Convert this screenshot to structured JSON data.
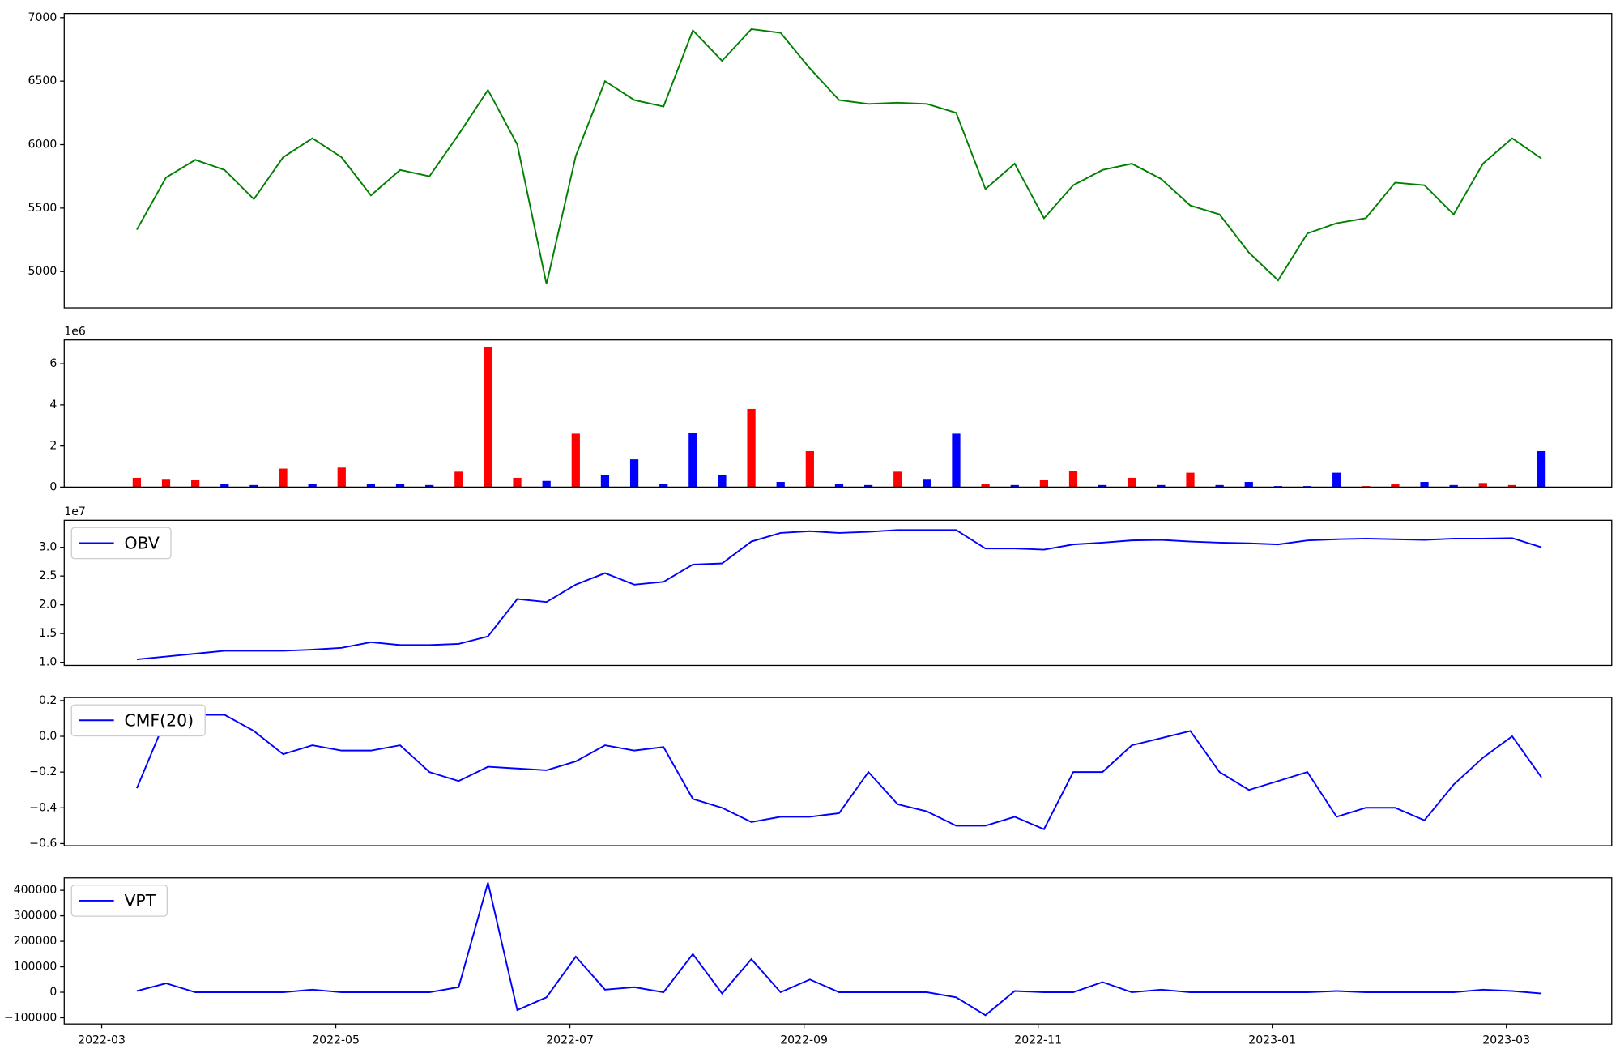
{
  "chart_data": [
    {
      "type": "line",
      "color": "#008000",
      "x": [
        0.3,
        0.55,
        0.8,
        1.05,
        1.3,
        1.55,
        1.8,
        2.05,
        2.3,
        2.55,
        2.8,
        3.05,
        3.3,
        3.55,
        3.8,
        4.05,
        4.3,
        4.55,
        4.8,
        5.05,
        5.3,
        5.55,
        5.8,
        6.05,
        6.3,
        6.55,
        6.8,
        7.05,
        7.3,
        7.55,
        7.8,
        8.05,
        8.3,
        8.55,
        8.8,
        9.05,
        9.3,
        9.55,
        9.8,
        10.05,
        10.3,
        10.55,
        10.8,
        11.05,
        11.3,
        11.55,
        11.8,
        12.05,
        12.3
      ],
      "values": [
        5330,
        5740,
        5880,
        5800,
        5570,
        5900,
        6050,
        5900,
        5600,
        5800,
        5750,
        6080,
        6430,
        6000,
        4900,
        5910,
        6500,
        6350,
        6300,
        6900,
        6660,
        6910,
        6880,
        6600,
        6350,
        6320,
        6330,
        6320,
        6250,
        5650,
        5850,
        5420,
        5680,
        5800,
        5850,
        5730,
        5520,
        5450,
        5150,
        4930,
        5300,
        5380,
        5420,
        5700,
        5680,
        5450,
        5850,
        6050,
        5890
      ],
      "xlim": [
        -0.32,
        12.9
      ],
      "ylim": [
        4714,
        7033
      ],
      "yticks": [
        5000,
        5500,
        6000,
        6500,
        7000
      ]
    },
    {
      "type": "bar",
      "y_offset_label": "1e6",
      "x": [
        0.3,
        0.55,
        0.8,
        1.05,
        1.3,
        1.55,
        1.8,
        2.05,
        2.3,
        2.55,
        2.8,
        3.05,
        3.3,
        3.55,
        3.8,
        4.05,
        4.3,
        4.55,
        4.8,
        5.05,
        5.3,
        5.55,
        5.8,
        6.05,
        6.3,
        6.55,
        6.8,
        7.05,
        7.3,
        7.55,
        7.8,
        8.05,
        8.3,
        8.55,
        8.8,
        9.05,
        9.3,
        9.55,
        9.8,
        10.05,
        10.3,
        10.55,
        10.8,
        11.05,
        11.3,
        11.55,
        11.8,
        12.05,
        12.3
      ],
      "values": [
        0.45,
        0.4,
        0.35,
        0.15,
        0.1,
        0.9,
        0.15,
        0.95,
        0.15,
        0.15,
        0.1,
        0.75,
        6.8,
        0.45,
        0.3,
        2.6,
        0.6,
        1.35,
        0.15,
        2.65,
        0.6,
        3.8,
        0.25,
        1.75,
        0.15,
        0.1,
        0.75,
        0.4,
        2.6,
        0.15,
        0.1,
        0.35,
        0.8,
        0.1,
        0.45,
        0.1,
        0.7,
        0.1,
        0.25,
        0.05,
        0.05,
        0.7,
        0.05,
        0.15,
        0.25,
        0.1,
        0.2,
        0.1,
        1.75
      ],
      "colors": [
        "#ff0000",
        "#ff0000",
        "#ff0000",
        "#0000ff",
        "#0000ff",
        "#ff0000",
        "#0000ff",
        "#ff0000",
        "#0000ff",
        "#0000ff",
        "#0000ff",
        "#ff0000",
        "#ff0000",
        "#ff0000",
        "#0000ff",
        "#ff0000",
        "#0000ff",
        "#0000ff",
        "#0000ff",
        "#0000ff",
        "#0000ff",
        "#ff0000",
        "#0000ff",
        "#ff0000",
        "#0000ff",
        "#0000ff",
        "#ff0000",
        "#0000ff",
        "#0000ff",
        "#ff0000",
        "#0000ff",
        "#ff0000",
        "#ff0000",
        "#0000ff",
        "#ff0000",
        "#0000ff",
        "#ff0000",
        "#0000ff",
        "#0000ff",
        "#0000ff",
        "#0000ff",
        "#0000ff",
        "#ff0000",
        "#ff0000",
        "#0000ff",
        "#0000ff",
        "#ff0000",
        "#ff0000",
        "#0000ff"
      ],
      "xlim": [
        -0.32,
        12.9
      ],
      "ylim": [
        0,
        7.16
      ],
      "yticks": [
        0,
        2,
        4,
        6
      ]
    },
    {
      "type": "line",
      "y_offset_label": "1e7",
      "x": [
        0.3,
        0.55,
        0.8,
        1.05,
        1.3,
        1.55,
        1.8,
        2.05,
        2.3,
        2.55,
        2.8,
        3.05,
        3.3,
        3.55,
        3.8,
        4.05,
        4.3,
        4.55,
        4.8,
        5.05,
        5.3,
        5.55,
        5.8,
        6.05,
        6.3,
        6.55,
        6.8,
        7.05,
        7.3,
        7.55,
        7.8,
        8.05,
        8.3,
        8.55,
        8.8,
        9.05,
        9.3,
        9.55,
        9.8,
        10.05,
        10.3,
        10.55,
        10.8,
        11.05,
        11.3,
        11.55,
        11.8,
        12.05,
        12.3
      ],
      "series": [
        {
          "name": "OBV",
          "color": "#0000ff",
          "values": [
            1.05,
            1.1,
            1.15,
            1.2,
            1.2,
            1.2,
            1.22,
            1.25,
            1.35,
            1.3,
            1.3,
            1.32,
            1.45,
            2.1,
            2.05,
            2.35,
            2.55,
            2.35,
            2.4,
            2.7,
            2.72,
            3.1,
            3.25,
            3.28,
            3.25,
            3.27,
            3.3,
            3.3,
            3.3,
            2.98,
            2.98,
            2.96,
            3.05,
            3.08,
            3.12,
            3.13,
            3.1,
            3.08,
            3.07,
            3.05,
            3.12,
            3.14,
            3.15,
            3.14,
            3.13,
            3.15,
            3.15,
            3.16,
            3.0
          ]
        }
      ],
      "xlim": [
        -0.32,
        12.9
      ],
      "ylim": [
        0.946,
        3.47
      ],
      "yticks": [
        {
          "value": 1,
          "label": "1.0"
        },
        {
          "value": 1.5,
          "label": "1.5"
        },
        {
          "value": 2,
          "label": "2.0"
        },
        {
          "value": 2.5,
          "label": "2.5"
        },
        {
          "value": 3,
          "label": "3.0"
        }
      ]
    },
    {
      "type": "line",
      "x": [
        0.3,
        0.55,
        0.8,
        1.05,
        1.3,
        1.55,
        1.8,
        2.05,
        2.3,
        2.55,
        2.8,
        3.05,
        3.3,
        3.55,
        3.8,
        4.05,
        4.3,
        4.55,
        4.8,
        5.05,
        5.3,
        5.55,
        5.8,
        6.05,
        6.3,
        6.55,
        6.8,
        7.05,
        7.3,
        7.55,
        7.8,
        8.05,
        8.3,
        8.55,
        8.8,
        9.05,
        9.3,
        9.55,
        9.8,
        10.05,
        10.3,
        10.55,
        10.8,
        11.05,
        11.3,
        11.55,
        11.8,
        12.05,
        12.3
      ],
      "series": [
        {
          "name": "CMF(20)",
          "color": "#0000ff",
          "values": [
            -0.29,
            0.1,
            0.12,
            0.12,
            0.03,
            -0.1,
            -0.05,
            -0.08,
            -0.08,
            -0.05,
            -0.2,
            -0.25,
            -0.17,
            -0.18,
            -0.19,
            -0.14,
            -0.05,
            -0.08,
            -0.06,
            -0.35,
            -0.4,
            -0.48,
            -0.45,
            -0.45,
            -0.43,
            -0.2,
            -0.38,
            -0.42,
            -0.5,
            -0.5,
            -0.45,
            -0.52,
            -0.2,
            -0.2,
            -0.05,
            -0.01,
            0.03,
            -0.2,
            -0.3,
            -0.25,
            -0.2,
            -0.45,
            -0.4,
            -0.4,
            -0.47,
            -0.27,
            -0.12,
            0.0,
            -0.23
          ]
        }
      ],
      "xlim": [
        -0.32,
        12.9
      ],
      "ylim": [
        -0.612,
        0.217
      ],
      "yticks": [
        {
          "value": -0.6,
          "label": "−0.6"
        },
        {
          "value": -0.4,
          "label": "−0.4"
        },
        {
          "value": -0.2,
          "label": "−0.2"
        },
        {
          "value": 0,
          "label": "0.0"
        },
        {
          "value": 0.2,
          "label": "0.2"
        }
      ]
    },
    {
      "type": "line",
      "x": [
        0.3,
        0.55,
        0.8,
        1.05,
        1.3,
        1.55,
        1.8,
        2.05,
        2.3,
        2.55,
        2.8,
        3.05,
        3.3,
        3.55,
        3.8,
        4.05,
        4.3,
        4.55,
        4.8,
        5.05,
        5.3,
        5.55,
        5.8,
        6.05,
        6.3,
        6.55,
        6.8,
        7.05,
        7.3,
        7.55,
        7.8,
        8.05,
        8.3,
        8.55,
        8.8,
        9.05,
        9.3,
        9.55,
        9.8,
        10.05,
        10.3,
        10.55,
        10.8,
        11.05,
        11.3,
        11.55,
        11.8,
        12.05,
        12.3
      ],
      "series": [
        {
          "name": "VPT",
          "color": "#0000ff",
          "values": [
            5000,
            35000,
            0,
            0,
            0,
            0,
            10000,
            0,
            0,
            0,
            0,
            20000,
            430000,
            -70000,
            -20000,
            140000,
            10000,
            20000,
            0,
            150000,
            -5000,
            130000,
            0,
            50000,
            0,
            0,
            0,
            0,
            -20000,
            -90000,
            5000,
            0,
            0,
            40000,
            0,
            10000,
            0,
            0,
            0,
            0,
            0,
            5000,
            0,
            0,
            0,
            0,
            10000,
            5000,
            -5000
          ]
        }
      ],
      "xlim": [
        -0.32,
        12.9
      ],
      "ylim": [
        -124400,
        448800
      ],
      "yticks": [
        {
          "value": -100000,
          "label": "−100000"
        },
        0,
        100000,
        200000,
        300000,
        400000
      ],
      "xticks": [
        {
          "value": 0,
          "label": "2022-03"
        },
        {
          "value": 2,
          "label": "2022-05"
        },
        {
          "value": 4,
          "label": "2022-07"
        },
        {
          "value": 6,
          "label": "2022-09"
        },
        {
          "value": 8,
          "label": "2022-11"
        },
        {
          "value": 10,
          "label": "2023-01"
        },
        {
          "value": 12,
          "label": "2023-03"
        }
      ]
    }
  ]
}
